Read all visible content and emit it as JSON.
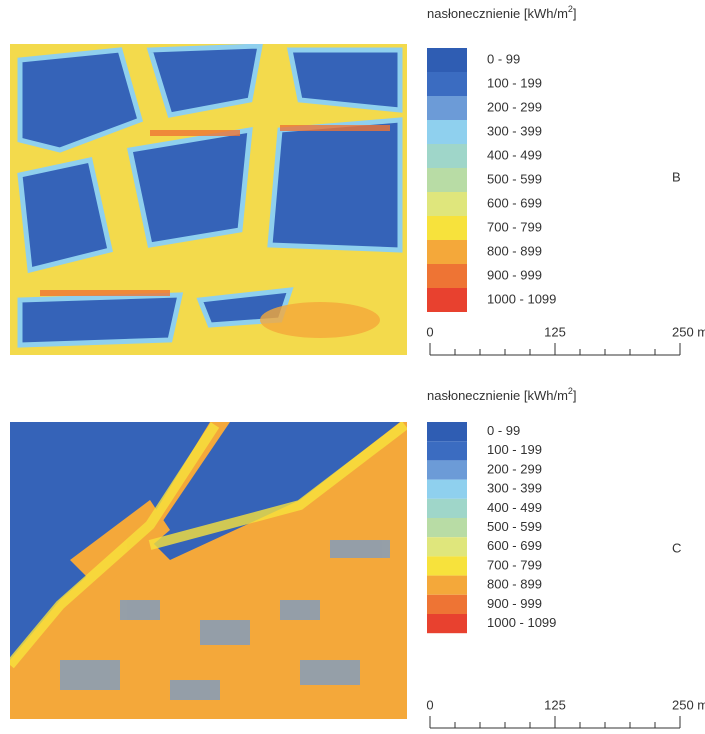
{
  "panels": [
    {
      "letter": "B",
      "legend_title": {
        "text": "nasłonecznienie [kWh/m",
        "sup": "2",
        "end": "]"
      },
      "legend": [
        {
          "label": "0 - 99",
          "color": "#2f5db3"
        },
        {
          "label": "100 - 199",
          "color": "#3b6cc1"
        },
        {
          "label": "200 - 299",
          "color": "#6c9bd7"
        },
        {
          "label": "300 - 399",
          "color": "#8fd0ee"
        },
        {
          "label": "400 - 499",
          "color": "#9fd6c9"
        },
        {
          "label": "500 - 599",
          "color": "#b8dca5"
        },
        {
          "label": "600 - 699",
          "color": "#dfe67c"
        },
        {
          "label": "700 - 799",
          "color": "#f7e23c"
        },
        {
          "label": "800 - 899",
          "color": "#f4a83a"
        },
        {
          "label": "900 - 999",
          "color": "#ee7434"
        },
        {
          "label": "1000 - 1099",
          "color": "#e8412f"
        }
      ],
      "scale": [
        "0",
        "125",
        "250 m"
      ]
    },
    {
      "letter": "C",
      "legend_title": {
        "text": "nasłonecznienie [kWh/m",
        "sup": "2",
        "end": "]"
      },
      "legend": [
        {
          "label": "0 - 99",
          "color": "#2f5db3"
        },
        {
          "label": "100 - 199",
          "color": "#3b6cc1"
        },
        {
          "label": "200 - 299",
          "color": "#6c9bd7"
        },
        {
          "label": "300 - 399",
          "color": "#8fd0ee"
        },
        {
          "label": "400 - 499",
          "color": "#9fd6c9"
        },
        {
          "label": "500 - 599",
          "color": "#b8dca5"
        },
        {
          "label": "600 - 699",
          "color": "#dfe67c"
        },
        {
          "label": "700 - 799",
          "color": "#f7e23c"
        },
        {
          "label": "800 - 899",
          "color": "#f4a83a"
        },
        {
          "label": "900 - 999",
          "color": "#ee7434"
        },
        {
          "label": "1000 - 1099",
          "color": "#e8412f"
        }
      ],
      "scale": [
        "0",
        "125",
        "250 m"
      ]
    }
  ]
}
